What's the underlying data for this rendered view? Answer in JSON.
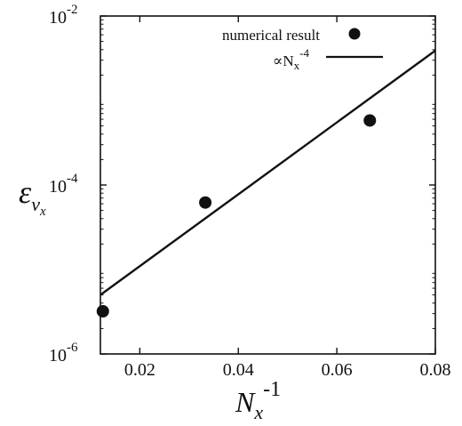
{
  "chart_data": {
    "type": "scatter",
    "title": "",
    "xlabel": {
      "base": "N",
      "sub": "x",
      "sup": "-1"
    },
    "ylabel": {
      "base": "ε",
      "sub": "ν",
      "subsub": "x"
    },
    "xlim": [
      0.012,
      0.08
    ],
    "ylim": [
      1e-06,
      0.01
    ],
    "yscale": "log",
    "grid": false,
    "legend_position": "top-right",
    "x_ticks": [
      {
        "value": 0.02,
        "label": "0.02"
      },
      {
        "value": 0.04,
        "label": "0.04"
      },
      {
        "value": 0.06,
        "label": "0.06"
      },
      {
        "value": 0.08,
        "label": "0.08"
      }
    ],
    "y_ticks": [
      {
        "value": 1e-06,
        "base": "10",
        "exp": "-6"
      },
      {
        "value": 0.0001,
        "base": "10",
        "exp": "-4"
      },
      {
        "value": 0.01,
        "base": "10",
        "exp": "-2"
      }
    ],
    "series": [
      {
        "name": "numerical result",
        "kind": "points",
        "x": [
          0.0125,
          0.0333,
          0.0667
        ],
        "y": [
          3.2e-06,
          6.2e-05,
          0.00058
        ]
      },
      {
        "name": "∝N_x^-4",
        "legend": {
          "prefix": "∝N",
          "sub": "x",
          "sup": "-4"
        },
        "kind": "line",
        "x": [
          0.012,
          0.08
        ],
        "y": [
          5e-06,
          0.0039
        ]
      }
    ],
    "colors": {
      "points": "#111111",
      "line": "#111111",
      "axes": "#111111"
    }
  }
}
